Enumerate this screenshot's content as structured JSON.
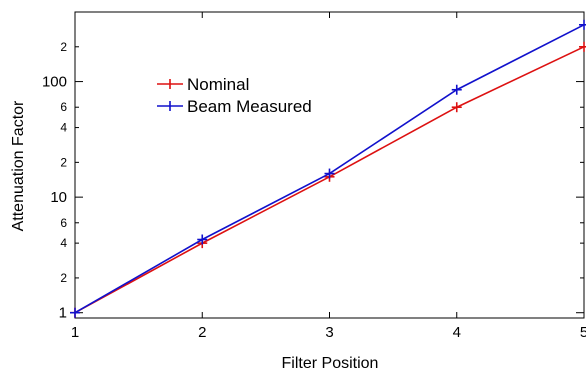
{
  "chart_data": {
    "type": "line",
    "xlabel": "Filter Position",
    "ylabel": "Attenuation Factor",
    "x": [
      1,
      2,
      3,
      4,
      5
    ],
    "xlim": [
      1,
      5
    ],
    "ylim": [
      0.9,
      400
    ],
    "yscale": "log",
    "grid": false,
    "legend_position": "upper-left",
    "x_tick_labels": [
      "1",
      "2",
      "3",
      "4",
      "5"
    ],
    "y_major_ticks": [
      {
        "value": 1,
        "label": "1"
      },
      {
        "value": 10,
        "label": "10"
      },
      {
        "value": 100,
        "label": "100"
      }
    ],
    "y_minor_ticks": [
      {
        "value": 2,
        "label": "2"
      },
      {
        "value": 4,
        "label": "4"
      },
      {
        "value": 6,
        "label": "6"
      },
      {
        "value": 20,
        "label": "2"
      },
      {
        "value": 40,
        "label": "4"
      },
      {
        "value": 60,
        "label": "6"
      },
      {
        "value": 200,
        "label": "2"
      }
    ],
    "series": [
      {
        "name": "Nominal",
        "color": "#dd1111",
        "values": [
          1,
          4,
          15,
          60,
          200
        ]
      },
      {
        "name": "Beam Measured",
        "color": "#1111cc",
        "values": [
          1,
          4.3,
          16,
          85,
          310
        ]
      }
    ]
  }
}
